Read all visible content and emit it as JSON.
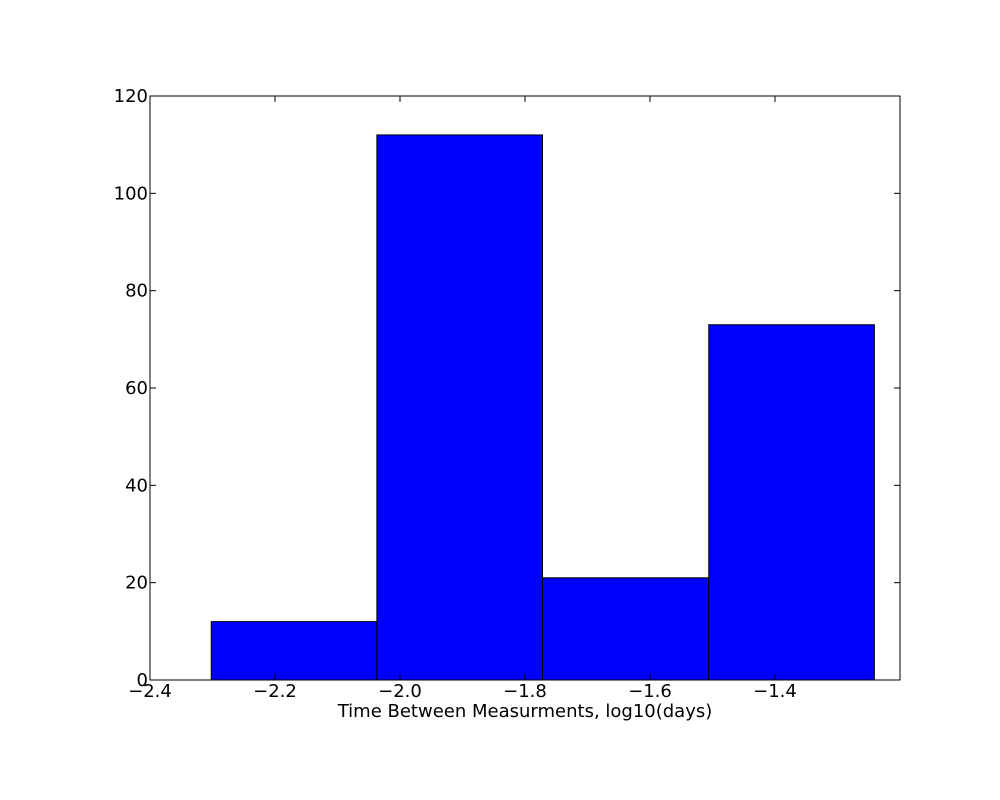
{
  "chart_data": {
    "type": "bar",
    "subtype": "histogram",
    "title": "",
    "xlabel": "Time Between Measurments, log10(days)",
    "ylabel": "",
    "xlim": [
      -2.4,
      -1.2
    ],
    "ylim": [
      0,
      120
    ],
    "xticks": [
      -2.4,
      -2.2,
      -2.0,
      -1.8,
      -1.6,
      -1.4
    ],
    "xtick_labels": [
      "−2.4",
      "−2.2",
      "−2.0",
      "−1.8",
      "−1.6",
      "−1.4"
    ],
    "yticks": [
      0,
      20,
      40,
      60,
      80,
      100,
      120
    ],
    "ytick_labels": [
      "0",
      "20",
      "40",
      "60",
      "80",
      "100",
      "120"
    ],
    "bins": [
      {
        "x0": -2.302,
        "x1": -2.037,
        "count": 12
      },
      {
        "x0": -2.037,
        "x1": -1.772,
        "count": 112
      },
      {
        "x0": -1.772,
        "x1": -1.506,
        "count": 21
      },
      {
        "x0": -1.506,
        "x1": -1.241,
        "count": 73
      }
    ],
    "bar_color": "#0000ff",
    "edge_color": "#000000",
    "grid": false,
    "legend": "none"
  }
}
